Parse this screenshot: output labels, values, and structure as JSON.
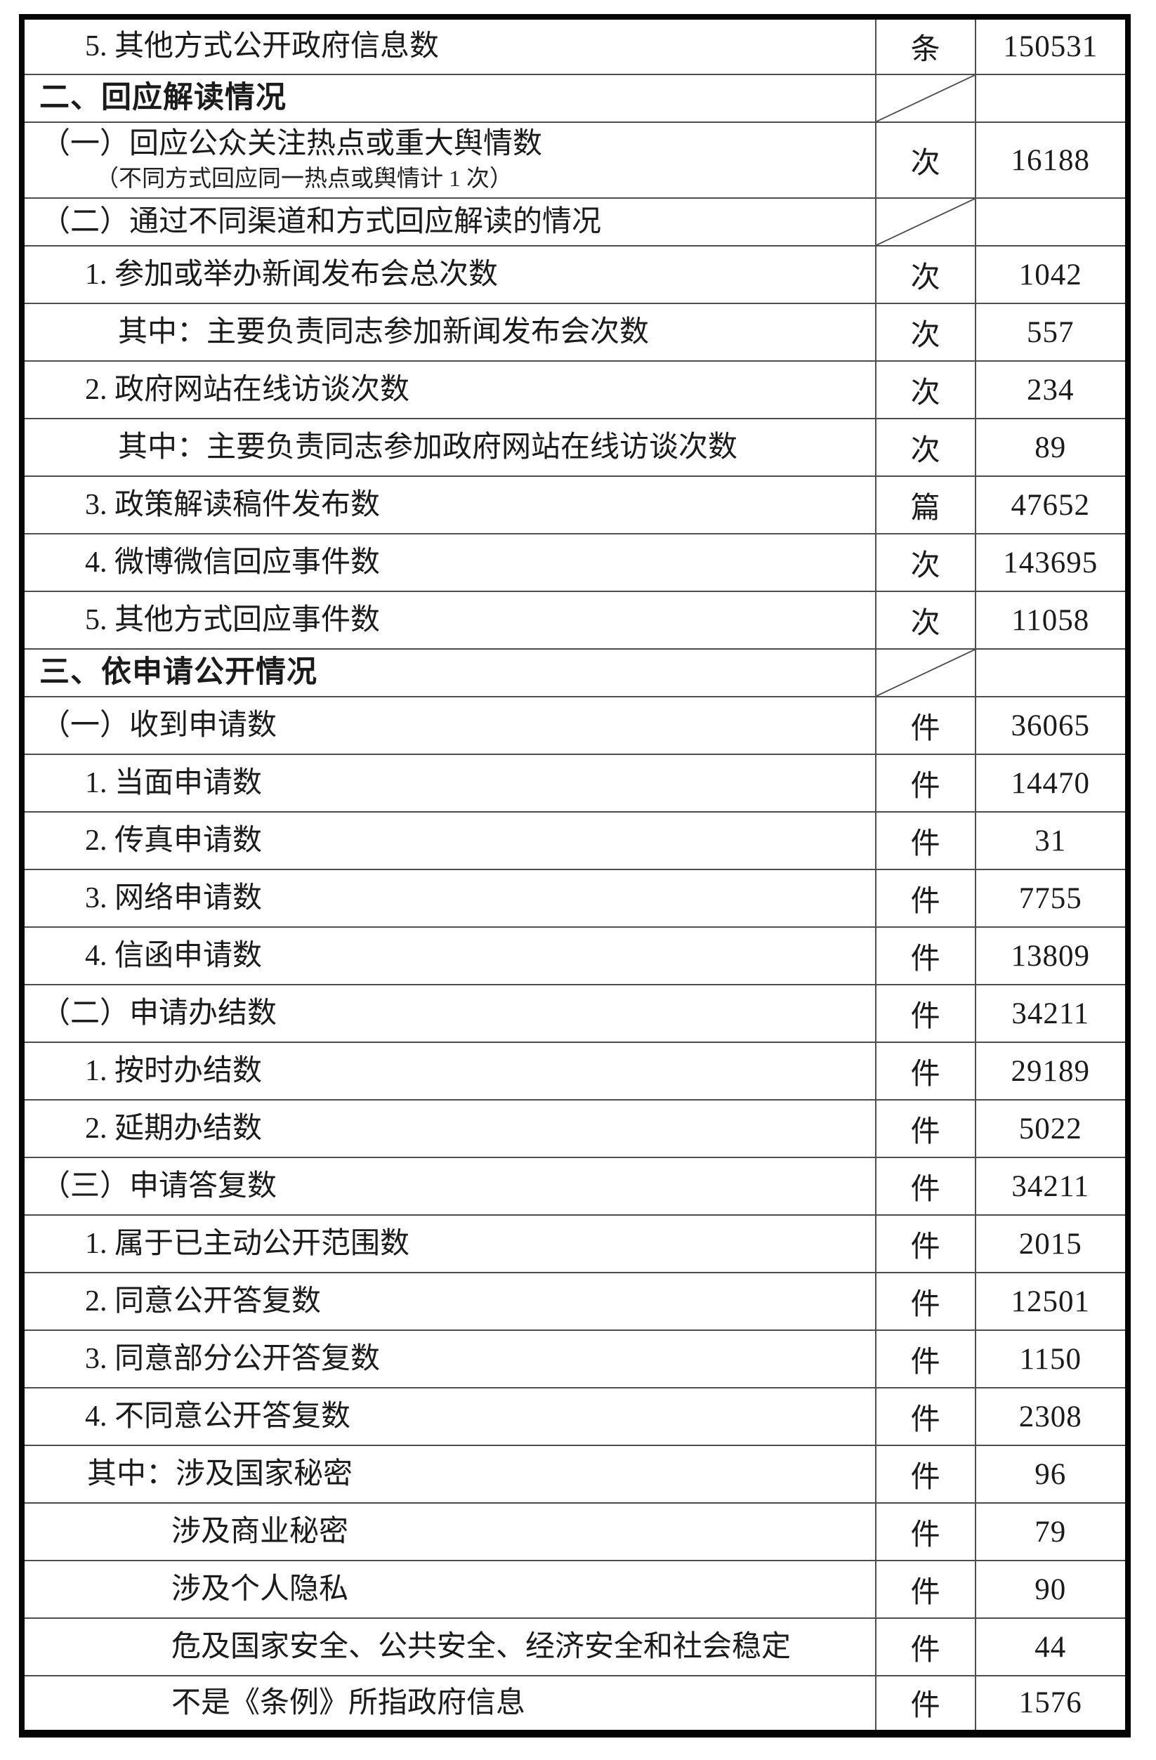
{
  "page": {
    "background": "#ffffff"
  },
  "table": {
    "border_color": "#050505",
    "grid_color": "#4d4d4d",
    "units_seen": [
      "条",
      "次",
      "篇",
      "件"
    ],
    "rows": [
      {
        "label": "5. 其他方式公开政府信息数",
        "indent": "num",
        "unit": "条",
        "value": "150531",
        "kind": "data",
        "diagonal": false
      },
      {
        "label": "二、回应解读情况",
        "indent": "section",
        "unit": "",
        "value": "",
        "kind": "section",
        "diagonal": true
      },
      {
        "label": "（一）回应公众关注热点或重大舆情数",
        "note": "（不同方式回应同一热点或舆情计 1 次）",
        "indent": "sub",
        "unit": "次",
        "value": "16188",
        "kind": "note",
        "diagonal": false
      },
      {
        "label": "（二）通过不同渠道和方式回应解读的情况",
        "indent": "sub",
        "unit": "",
        "value": "",
        "kind": "diagonal",
        "diagonal": true
      },
      {
        "label": "1. 参加或举办新闻发布会总次数",
        "indent": "num",
        "unit": "次",
        "value": "1042",
        "kind": "data",
        "diagonal": false
      },
      {
        "label": "其中：主要负责同志参加新闻发布会次数",
        "indent": "mid",
        "unit": "次",
        "value": "557",
        "kind": "data",
        "diagonal": false
      },
      {
        "label": "2. 政府网站在线访谈次数",
        "indent": "num",
        "unit": "次",
        "value": "234",
        "kind": "data",
        "diagonal": false
      },
      {
        "label": "其中：主要负责同志参加政府网站在线访谈次数",
        "indent": "mid",
        "unit": "次",
        "value": "89",
        "kind": "data",
        "diagonal": false
      },
      {
        "label": "3. 政策解读稿件发布数",
        "indent": "num",
        "unit": "篇",
        "value": "47652",
        "kind": "data",
        "diagonal": false
      },
      {
        "label": "4. 微博微信回应事件数",
        "indent": "num",
        "unit": "次",
        "value": "143695",
        "kind": "data",
        "diagonal": false
      },
      {
        "label": "5. 其他方式回应事件数",
        "indent": "num",
        "unit": "次",
        "value": "11058",
        "kind": "data",
        "diagonal": false
      },
      {
        "label": "三、依申请公开情况",
        "indent": "section",
        "unit": "",
        "value": "",
        "kind": "section",
        "diagonal": true
      },
      {
        "label": "（一）收到申请数",
        "indent": "sub",
        "unit": "件",
        "value": "36065",
        "kind": "data",
        "diagonal": false
      },
      {
        "label": "1. 当面申请数",
        "indent": "num",
        "unit": "件",
        "value": "14470",
        "kind": "data",
        "diagonal": false
      },
      {
        "label": "2. 传真申请数",
        "indent": "num",
        "unit": "件",
        "value": "31",
        "kind": "data",
        "diagonal": false
      },
      {
        "label": "3. 网络申请数",
        "indent": "num",
        "unit": "件",
        "value": "7755",
        "kind": "data",
        "diagonal": false
      },
      {
        "label": "4. 信函申请数",
        "indent": "num",
        "unit": "件",
        "value": "13809",
        "kind": "data",
        "diagonal": false
      },
      {
        "label": "（二）申请办结数",
        "indent": "sub",
        "unit": "件",
        "value": "34211",
        "kind": "data",
        "diagonal": false
      },
      {
        "label": "1. 按时办结数",
        "indent": "num",
        "unit": "件",
        "value": "29189",
        "kind": "data",
        "diagonal": false
      },
      {
        "label": "2. 延期办结数",
        "indent": "num",
        "unit": "件",
        "value": "5022",
        "kind": "data",
        "diagonal": false
      },
      {
        "label": "（三）申请答复数",
        "indent": "sub",
        "unit": "件",
        "value": "34211",
        "kind": "data",
        "diagonal": false
      },
      {
        "label": "1. 属于已主动公开范围数",
        "indent": "num",
        "unit": "件",
        "value": "2015",
        "kind": "data",
        "diagonal": false
      },
      {
        "label": "2. 同意公开答复数",
        "indent": "num",
        "unit": "件",
        "value": "12501",
        "kind": "data",
        "diagonal": false
      },
      {
        "label": "3. 同意部分公开答复数",
        "indent": "num",
        "unit": "件",
        "value": "1150",
        "kind": "data",
        "diagonal": false
      },
      {
        "label": "4. 不同意公开答复数",
        "indent": "num",
        "unit": "件",
        "value": "2308",
        "kind": "data",
        "diagonal": false
      },
      {
        "label": "其中：涉及国家秘密",
        "indent": "mid2",
        "unit": "件",
        "value": "96",
        "kind": "data",
        "diagonal": false
      },
      {
        "label": "涉及商业秘密",
        "indent": "deep",
        "unit": "件",
        "value": "79",
        "kind": "data",
        "diagonal": false
      },
      {
        "label": "涉及个人隐私",
        "indent": "deep",
        "unit": "件",
        "value": "90",
        "kind": "data",
        "diagonal": false
      },
      {
        "label": "危及国家安全、公共安全、经济安全和社会稳定",
        "indent": "deep",
        "unit": "件",
        "value": "44",
        "kind": "data",
        "diagonal": false
      },
      {
        "label": "不是《条例》所指政府信息",
        "indent": "deep",
        "unit": "件",
        "value": "1576",
        "kind": "data",
        "diagonal": false
      }
    ]
  }
}
